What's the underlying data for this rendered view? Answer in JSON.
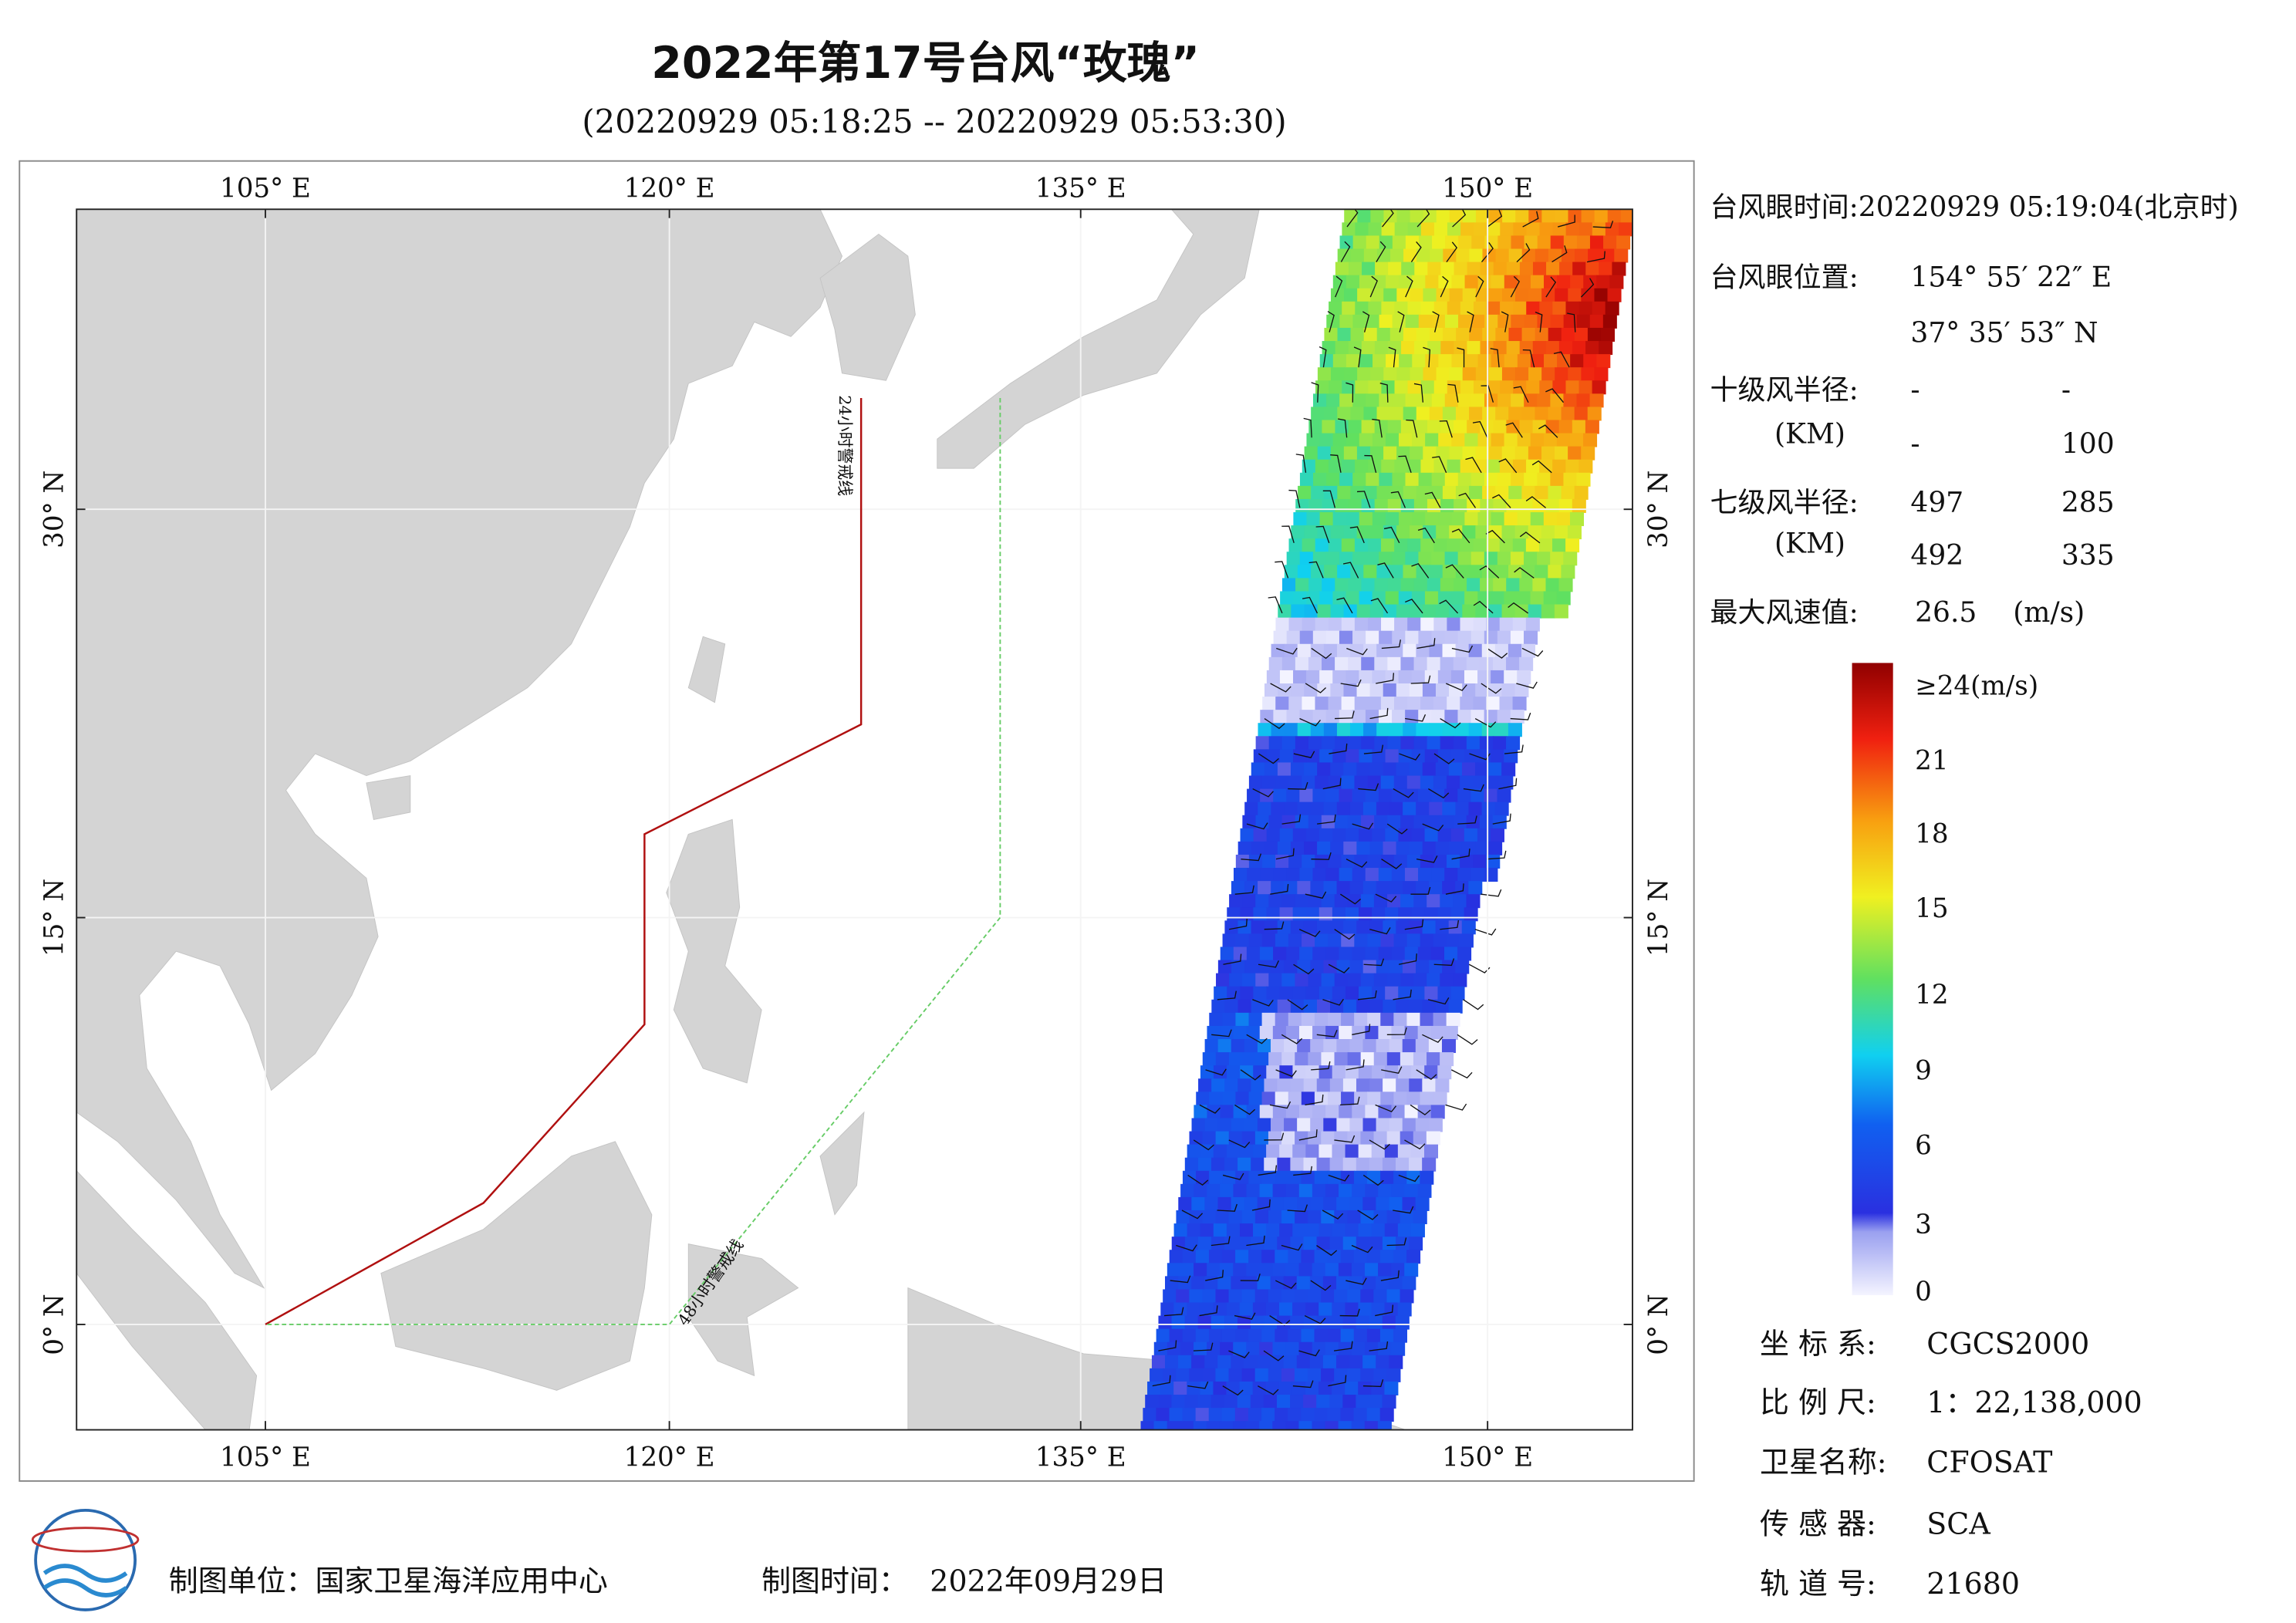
{
  "header": {
    "title": "2022年第17号台风“玫瑰”",
    "subtitle": "(20220929 05:18:25 -- 20220929 05:53:30)"
  },
  "map": {
    "lon_labels": [
      "105° E",
      "120° E",
      "135° E",
      "150° E"
    ],
    "lat_labels": [
      "30° N",
      "15° N",
      "0° N"
    ],
    "warning_lines": [
      "24小时警戒线",
      "48小时警戒线"
    ]
  },
  "info": {
    "eye_time": "台风眼时间:20220929 05:19:04(北京时)",
    "eye_pos_label": "台风眼位置:",
    "eye_lon": "154° 55′ 22″ E",
    "eye_lat": "37° 35′ 53″ N",
    "r10_label": "十级风半径:",
    "r10_unit": "(KM)",
    "r10": [
      [
        "-",
        "-"
      ],
      [
        "-",
        "100"
      ]
    ],
    "r7_label": "七级风半径:",
    "r7_unit": "(KM)",
    "r7": [
      [
        "497",
        "285"
      ],
      [
        "492",
        "335"
      ]
    ],
    "vmax_label": "最大风速值:",
    "vmax": "26.5",
    "vmax_unit": "(m/s)"
  },
  "colorbar": {
    "labels": [
      "≥24(m/s)",
      "21",
      "18",
      "15",
      "12",
      "9",
      "6",
      "3",
      "0"
    ]
  },
  "meta": [
    [
      "坐 标 系:",
      "CGCS2000"
    ],
    [
      "比 例 尺:",
      "1：22,138,000"
    ],
    [
      "卫星名称:",
      "CFOSAT"
    ],
    [
      "传 感 器:",
      "SCA"
    ],
    [
      "轨 道 号:",
      "21680"
    ]
  ],
  "footer": {
    "unit": "制图单位：国家卫星海洋应用中心",
    "time_label": "制图时间：",
    "time": "2022年09月29日"
  }
}
